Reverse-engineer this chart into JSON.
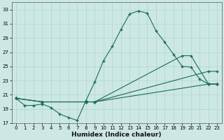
{
  "xlabel": "Humidex (Indice chaleur)",
  "background_color": "#cde8e4",
  "grid_color": "#b0d8d4",
  "line_color": "#1a6b5a",
  "ylim": [
    17,
    34
  ],
  "xlim": [
    -0.5,
    23.5
  ],
  "yticks": [
    17,
    19,
    21,
    23,
    25,
    27,
    29,
    31,
    33
  ],
  "xticks": [
    0,
    1,
    2,
    3,
    4,
    5,
    6,
    7,
    8,
    9,
    10,
    11,
    12,
    13,
    14,
    15,
    16,
    17,
    18,
    19,
    20,
    21,
    22,
    23
  ],
  "curves": [
    {
      "x": [
        0,
        1,
        2,
        3,
        4,
        5,
        6,
        7,
        8,
        9,
        10,
        11,
        12,
        13,
        14,
        15,
        16,
        17,
        18,
        19,
        20,
        21,
        22,
        23
      ],
      "y": [
        20.5,
        19.5,
        19.5,
        19.7,
        19.2,
        18.3,
        17.8,
        17.4,
        20.2,
        22.8,
        25.8,
        27.8,
        30.2,
        32.4,
        32.8,
        32.5,
        30.0,
        28.4,
        26.7,
        25.0,
        24.9,
        23.2,
        22.5,
        22.5
      ]
    },
    {
      "x": [
        0,
        3,
        8,
        9,
        19,
        20,
        22,
        23
      ],
      "y": [
        20.5,
        20.0,
        20.0,
        20.0,
        26.5,
        26.5,
        22.5,
        22.5
      ]
    },
    {
      "x": [
        0,
        3,
        8,
        9,
        22,
        23
      ],
      "y": [
        20.5,
        20.0,
        20.0,
        20.0,
        24.3,
        24.3
      ]
    },
    {
      "x": [
        0,
        3,
        8,
        9,
        22,
        23
      ],
      "y": [
        20.5,
        20.0,
        20.0,
        20.0,
        22.5,
        22.5
      ]
    }
  ]
}
